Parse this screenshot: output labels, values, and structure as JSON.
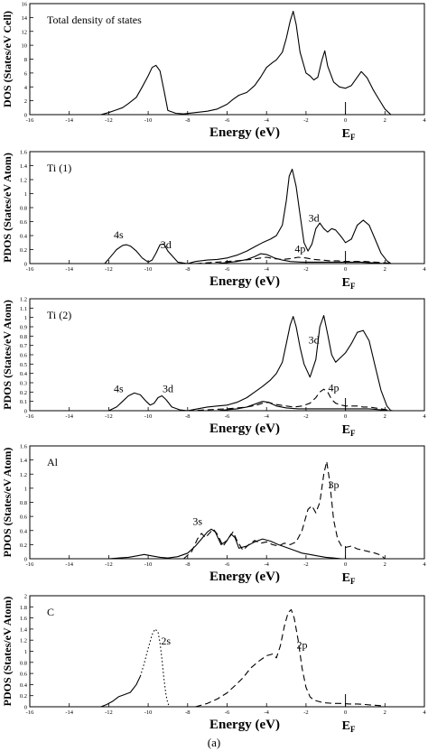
{
  "figure_caption": "(a)",
  "chart_data": [
    {
      "type": "line",
      "panel_label": "Total density of states",
      "ylabel": "DOS (States/eV Cell)",
      "xlabel": "Energy (eV)",
      "fermi_label": "E",
      "fermi_sub": "F",
      "fermi_energy": 0,
      "xlim": [
        -16,
        4
      ],
      "ylim": [
        0,
        16
      ],
      "xticks": [
        -16,
        -14,
        -12,
        -10,
        -8,
        -6,
        -4,
        -2,
        0,
        2,
        4
      ],
      "yticks": [
        0,
        2,
        4,
        6,
        8,
        10,
        12,
        14,
        16
      ],
      "series": [
        {
          "style": "solid",
          "x": [
            -12.4,
            -12.0,
            -11.7,
            -11.3,
            -11.0,
            -10.6,
            -10.3,
            -10.0,
            -9.8,
            -9.6,
            -9.4,
            -9.2,
            -9.0,
            -8.6,
            -8.2,
            -7.6,
            -7.0,
            -6.5,
            -6.0,
            -5.7,
            -5.4,
            -5.0,
            -4.6,
            -4.3,
            -4.0,
            -3.7,
            -3.5,
            -3.2,
            -3.0,
            -2.8,
            -2.65,
            -2.5,
            -2.3,
            -2.0,
            -1.8,
            -1.6,
            -1.4,
            -1.2,
            -1.05,
            -0.9,
            -0.6,
            -0.3,
            0.0,
            0.3,
            0.5,
            0.8,
            1.1,
            1.4,
            1.7,
            2.0,
            2.3
          ],
          "y": [
            0.0,
            0.3,
            0.6,
            1.0,
            1.6,
            2.5,
            4.0,
            5.6,
            6.8,
            7.1,
            6.3,
            3.5,
            0.6,
            0.2,
            0.1,
            0.3,
            0.5,
            0.8,
            1.5,
            2.2,
            2.8,
            3.2,
            4.2,
            5.4,
            6.8,
            7.5,
            7.9,
            9.0,
            11.0,
            13.5,
            14.9,
            13.0,
            9.0,
            6.0,
            5.6,
            5.0,
            5.4,
            7.8,
            9.2,
            7.0,
            4.7,
            4.0,
            3.8,
            4.2,
            5.0,
            6.2,
            5.3,
            3.6,
            2.2,
            0.8,
            0.0
          ]
        }
      ]
    },
    {
      "type": "line",
      "panel_label": "Ti (1)",
      "ylabel": "PDOS (States/eV Atom)",
      "xlabel": "Energy (eV)",
      "fermi_label": "E",
      "fermi_sub": "F",
      "fermi_energy": 0,
      "xlim": [
        -16,
        4
      ],
      "ylim": [
        0,
        1.6
      ],
      "xticks": [
        -16,
        -14,
        -12,
        -10,
        -8,
        -6,
        -4,
        -2,
        0,
        2,
        4
      ],
      "yticks": [
        0,
        0.2,
        0.4,
        0.6,
        0.8,
        1.0,
        1.2,
        1.4,
        1.6
      ],
      "annotations": [
        {
          "text": "4s",
          "x": -11.5,
          "y": 0.36
        },
        {
          "text": "3d",
          "x": -9.1,
          "y": 0.22
        },
        {
          "text": "3d",
          "x": -1.6,
          "y": 0.6
        },
        {
          "text": "4p",
          "x": -2.3,
          "y": 0.16
        }
      ],
      "series": [
        {
          "style": "solid",
          "x": [
            -12.2,
            -11.9,
            -11.6,
            -11.3,
            -11.1,
            -10.9,
            -10.6,
            -10.3,
            -10.0,
            -9.8,
            -9.6,
            -9.4,
            -9.2,
            -9.0,
            -8.5,
            -8.0,
            -7.6,
            -7.0,
            -6.5,
            -6.0,
            -5.5,
            -5.0,
            -4.6,
            -4.2,
            -3.8,
            -3.5,
            -3.2,
            -3.0,
            -2.85,
            -2.7,
            -2.5,
            -2.3,
            -2.1,
            -1.9,
            -1.7,
            -1.5,
            -1.3,
            -1.1,
            -0.9,
            -0.7,
            -0.5,
            -0.2,
            0.0,
            0.3,
            0.6,
            0.9,
            1.2,
            1.5,
            1.8,
            2.1,
            2.3
          ],
          "y": [
            0.0,
            0.1,
            0.2,
            0.26,
            0.27,
            0.25,
            0.18,
            0.08,
            0.02,
            0.05,
            0.15,
            0.27,
            0.28,
            0.18,
            0.02,
            0.0,
            0.03,
            0.05,
            0.06,
            0.08,
            0.12,
            0.18,
            0.24,
            0.3,
            0.35,
            0.4,
            0.55,
            0.9,
            1.25,
            1.35,
            1.1,
            0.7,
            0.3,
            0.18,
            0.28,
            0.5,
            0.58,
            0.5,
            0.45,
            0.5,
            0.48,
            0.38,
            0.3,
            0.35,
            0.55,
            0.62,
            0.55,
            0.35,
            0.15,
            0.04,
            0.0
          ]
        },
        {
          "style": "dashed",
          "x": [
            -7.6,
            -6.5,
            -5.5,
            -4.8,
            -4.3,
            -4.0,
            -3.6,
            -3.2,
            -2.8,
            -2.4,
            -2.0,
            -1.6,
            -1.2,
            -0.8,
            -0.4,
            0.0,
            0.5,
            1.0,
            1.5,
            2.0,
            2.4
          ],
          "y": [
            0.0,
            0.02,
            0.04,
            0.06,
            0.08,
            0.09,
            0.07,
            0.06,
            0.07,
            0.09,
            0.08,
            0.06,
            0.05,
            0.04,
            0.04,
            0.03,
            0.03,
            0.03,
            0.02,
            0.01,
            0.0
          ]
        },
        {
          "style": "solid",
          "x": [
            -6.5,
            -5.5,
            -5.0,
            -4.6,
            -4.3,
            -4.0,
            -3.6,
            -3.2,
            -2.8,
            -2.2,
            -1.6,
            -1.0,
            -0.4,
            0.2,
            0.8,
            1.4,
            2.0
          ],
          "y": [
            0.0,
            0.03,
            0.06,
            0.1,
            0.14,
            0.13,
            0.08,
            0.05,
            0.03,
            0.02,
            0.02,
            0.02,
            0.02,
            0.02,
            0.02,
            0.01,
            0.0
          ]
        }
      ]
    },
    {
      "type": "line",
      "panel_label": "Ti (2)",
      "ylabel": "PDOS (States/eV Atom)",
      "xlabel": "Energy (eV)",
      "fermi_label": "E",
      "fermi_sub": "F",
      "fermi_energy": 0,
      "xlim": [
        -16,
        4
      ],
      "ylim": [
        0,
        1.2
      ],
      "xticks": [
        -16,
        -14,
        -12,
        -10,
        -8,
        -6,
        -4,
        -2,
        0,
        2,
        4
      ],
      "yticks": [
        0,
        0.1,
        0.2,
        0.3,
        0.4,
        0.5,
        0.6,
        0.7,
        0.8,
        0.9,
        1.0,
        1.1,
        1.2
      ],
      "annotations": [
        {
          "text": "4s",
          "x": -11.5,
          "y": 0.2
        },
        {
          "text": "3d",
          "x": -9.0,
          "y": 0.2
        },
        {
          "text": "3d",
          "x": -1.6,
          "y": 0.72
        },
        {
          "text": "4p",
          "x": -0.6,
          "y": 0.21
        }
      ],
      "series": [
        {
          "style": "solid",
          "x": [
            -12.0,
            -11.6,
            -11.3,
            -11.0,
            -10.7,
            -10.4,
            -10.1,
            -9.9,
            -9.7,
            -9.5,
            -9.3,
            -9.1,
            -8.8,
            -8.4,
            -8.0,
            -7.5,
            -7.0,
            -6.5,
            -6.0,
            -5.5,
            -5.0,
            -4.6,
            -4.2,
            -3.8,
            -3.5,
            -3.2,
            -3.0,
            -2.8,
            -2.65,
            -2.5,
            -2.3,
            -2.1,
            -1.8,
            -1.5,
            -1.3,
            -1.1,
            -0.9,
            -0.7,
            -0.5,
            -0.2,
            0.0,
            0.3,
            0.6,
            0.9,
            1.2,
            1.5,
            1.8,
            2.1,
            2.3
          ],
          "y": [
            0.0,
            0.04,
            0.1,
            0.16,
            0.19,
            0.17,
            0.1,
            0.06,
            0.08,
            0.14,
            0.16,
            0.12,
            0.04,
            0.01,
            0.0,
            0.02,
            0.04,
            0.05,
            0.06,
            0.09,
            0.14,
            0.2,
            0.26,
            0.33,
            0.4,
            0.52,
            0.72,
            0.92,
            1.01,
            0.9,
            0.68,
            0.5,
            0.36,
            0.55,
            0.9,
            1.02,
            0.82,
            0.6,
            0.52,
            0.58,
            0.62,
            0.72,
            0.84,
            0.86,
            0.75,
            0.48,
            0.22,
            0.05,
            0.0
          ]
        },
        {
          "style": "dashed",
          "x": [
            -8.0,
            -7.0,
            -6.0,
            -5.0,
            -4.5,
            -4.2,
            -3.9,
            -3.6,
            -3.3,
            -3.0,
            -2.6,
            -2.2,
            -1.8,
            -1.5,
            -1.3,
            -1.1,
            -0.9,
            -0.7,
            -0.5,
            -0.2,
            0.0,
            0.3,
            0.6,
            0.9,
            1.2,
            1.5,
            1.8,
            2.1,
            2.4
          ],
          "y": [
            0.0,
            0.01,
            0.02,
            0.04,
            0.06,
            0.08,
            0.09,
            0.07,
            0.06,
            0.05,
            0.04,
            0.05,
            0.08,
            0.14,
            0.2,
            0.23,
            0.2,
            0.12,
            0.08,
            0.06,
            0.05,
            0.05,
            0.05,
            0.04,
            0.04,
            0.03,
            0.02,
            0.01,
            0.0
          ]
        },
        {
          "style": "solid",
          "x": [
            -6.5,
            -5.5,
            -5.0,
            -4.6,
            -4.2,
            -3.9,
            -3.5,
            -3.0,
            -2.4,
            -1.8,
            -1.2,
            -0.6,
            0.0,
            0.6,
            1.2,
            1.8,
            2.2
          ],
          "y": [
            0.0,
            0.02,
            0.04,
            0.07,
            0.1,
            0.09,
            0.05,
            0.03,
            0.02,
            0.02,
            0.02,
            0.02,
            0.02,
            0.02,
            0.02,
            0.01,
            0.0
          ]
        }
      ]
    },
    {
      "type": "line",
      "panel_label": "Al",
      "ylabel": "PDOS (States/eV Atom)",
      "xlabel": "Energy (eV)",
      "fermi_label": "E",
      "fermi_sub": "F",
      "fermi_energy": 0,
      "xlim": [
        -16,
        4
      ],
      "ylim": [
        0,
        1.6
      ],
      "xticks": [
        -16,
        -14,
        -12,
        -10,
        -8,
        -6,
        -4,
        -2,
        0,
        2,
        4
      ],
      "yticks": [
        0,
        0.2,
        0.4,
        0.6,
        0.8,
        1.0,
        1.2,
        1.4,
        1.6
      ],
      "annotations": [
        {
          "text": "3s",
          "x": -7.5,
          "y": 0.48
        },
        {
          "text": "3p",
          "x": -0.6,
          "y": 1.0
        }
      ],
      "series": [
        {
          "style": "dashed",
          "x": [
            -8.2,
            -7.8,
            -7.5,
            -7.3,
            -7.1,
            -6.9,
            -6.7,
            -6.5,
            -6.2,
            -5.9,
            -5.7,
            -5.5,
            -5.2,
            -4.9,
            -4.6,
            -4.3,
            -4.0,
            -3.7,
            -3.4,
            -3.1,
            -2.8,
            -2.5,
            -2.2,
            -1.9,
            -1.7,
            -1.5,
            -1.3,
            -1.1,
            -0.95,
            -0.8,
            -0.6,
            -0.4,
            -0.2,
            0.0,
            0.3,
            0.6,
            0.9,
            1.2,
            1.5,
            1.8,
            2.0
          ],
          "y": [
            0.0,
            0.1,
            0.28,
            0.36,
            0.3,
            0.36,
            0.42,
            0.35,
            0.18,
            0.3,
            0.38,
            0.26,
            0.12,
            0.2,
            0.26,
            0.22,
            0.24,
            0.2,
            0.18,
            0.22,
            0.2,
            0.24,
            0.4,
            0.7,
            0.75,
            0.65,
            0.8,
            1.2,
            1.38,
            1.1,
            0.55,
            0.28,
            0.18,
            0.16,
            0.18,
            0.14,
            0.12,
            0.1,
            0.08,
            0.05,
            0.0
          ]
        },
        {
          "style": "solid",
          "x": [
            -12.0,
            -11.5,
            -11.0,
            -10.6,
            -10.2,
            -9.8,
            -9.4,
            -9.0,
            -8.5,
            -8.0,
            -7.6,
            -7.3,
            -7.0,
            -6.8,
            -6.6,
            -6.3,
            -6.0,
            -5.8,
            -5.6,
            -5.4,
            -5.0,
            -4.6,
            -4.2,
            -3.8,
            -3.4,
            -3.0,
            -2.6,
            -2.2,
            -1.8,
            -1.4,
            -1.0,
            -0.6,
            -0.2,
            0.2
          ],
          "y": [
            0.0,
            0.01,
            0.02,
            0.04,
            0.06,
            0.04,
            0.02,
            0.01,
            0.03,
            0.08,
            0.18,
            0.28,
            0.38,
            0.42,
            0.38,
            0.2,
            0.26,
            0.35,
            0.3,
            0.15,
            0.18,
            0.24,
            0.28,
            0.25,
            0.2,
            0.16,
            0.12,
            0.08,
            0.06,
            0.04,
            0.02,
            0.01,
            0.0,
            0.0
          ]
        }
      ]
    },
    {
      "type": "line",
      "panel_label": "C",
      "ylabel": "PDOS (States/eV Atom)",
      "xlabel": "Energy (eV)",
      "fermi_label": "E",
      "fermi_sub": "F",
      "fermi_energy": 0,
      "xlim": [
        -16,
        4
      ],
      "ylim": [
        0,
        2.0
      ],
      "xticks": [
        -16,
        -14,
        -12,
        -10,
        -8,
        -6,
        -4,
        -2,
        0,
        2,
        4
      ],
      "yticks": [
        0,
        0.2,
        0.4,
        0.6,
        0.8,
        1.0,
        1.2,
        1.4,
        1.6,
        1.8,
        2.0
      ],
      "annotations": [
        {
          "text": "2s",
          "x": -9.1,
          "y": 1.12
        },
        {
          "text": "2p",
          "x": -2.2,
          "y": 1.05
        }
      ],
      "series": [
        {
          "style": "solid",
          "x": [
            -12.4,
            -12.1,
            -11.8,
            -11.5,
            -11.2,
            -10.9,
            -10.6,
            -10.4
          ],
          "y": [
            0.0,
            0.04,
            0.1,
            0.18,
            0.22,
            0.26,
            0.4,
            0.55
          ]
        },
        {
          "style": "dotted",
          "x": [
            -10.4,
            -10.2,
            -10.0,
            -9.8,
            -9.65,
            -9.5,
            -9.4,
            -9.3,
            -9.2,
            -9.1,
            -9.0,
            -8.9
          ],
          "y": [
            0.55,
            0.78,
            1.05,
            1.3,
            1.4,
            1.35,
            1.15,
            0.85,
            0.5,
            0.22,
            0.06,
            0.0
          ]
        },
        {
          "style": "dashed",
          "x": [
            -7.6,
            -7.0,
            -6.5,
            -6.0,
            -5.6,
            -5.2,
            -4.8,
            -4.4,
            -4.0,
            -3.7,
            -3.5,
            -3.3,
            -3.1,
            -2.9,
            -2.75,
            -2.6,
            -2.4,
            -2.2,
            -2.0,
            -1.8,
            -1.6,
            -1.4,
            -1.2,
            -1.0,
            -0.6,
            -0.2,
            0.2,
            0.6,
            1.0,
            1.4,
            1.8,
            2.0
          ],
          "y": [
            0.0,
            0.06,
            0.14,
            0.25,
            0.38,
            0.52,
            0.7,
            0.82,
            0.92,
            0.95,
            0.88,
            1.1,
            1.45,
            1.7,
            1.75,
            1.6,
            1.2,
            0.7,
            0.35,
            0.18,
            0.12,
            0.1,
            0.08,
            0.07,
            0.06,
            0.06,
            0.05,
            0.05,
            0.04,
            0.03,
            0.02,
            0.0
          ]
        }
      ]
    }
  ]
}
